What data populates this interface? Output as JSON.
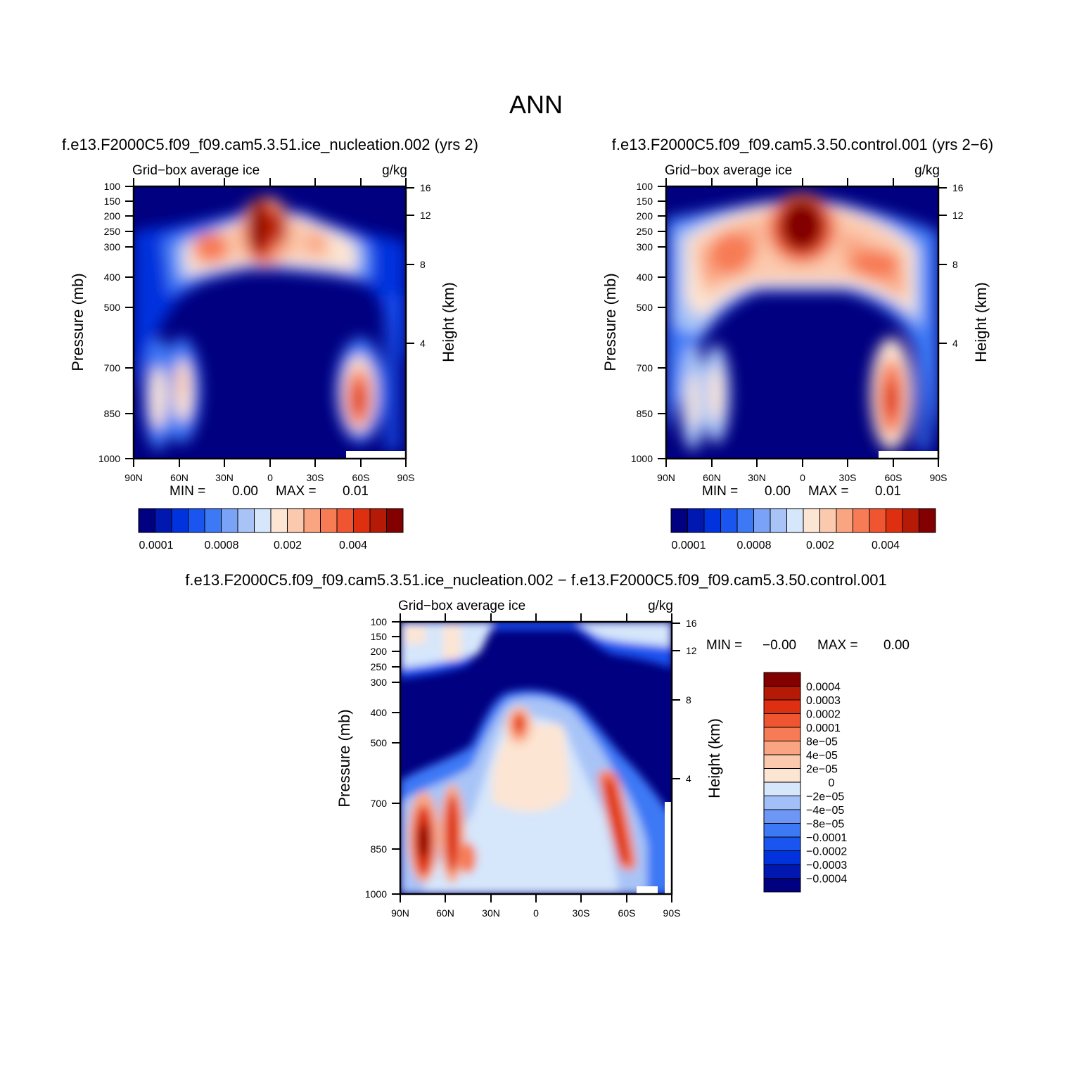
{
  "page_title": "ANN",
  "colors": {
    "seq": [
      "#000080",
      "#0018b0",
      "#0033dd",
      "#1a55f0",
      "#3d78f5",
      "#7aa3f7",
      "#a8c4f7",
      "#d6e6fb",
      "#fde5d3",
      "#fbc9ad",
      "#f9a582",
      "#f77b55",
      "#ef5530",
      "#de3010",
      "#b41a05",
      "#820000"
    ],
    "div": [
      "#000080",
      "#0018b0",
      "#0033dd",
      "#1a55f0",
      "#3d78f5",
      "#6e96f5",
      "#a2c0f7",
      "#d6e6fb",
      "#fde5d3",
      "#fbc9ad",
      "#f9a582",
      "#f77b55",
      "#ef5530",
      "#de3010",
      "#b41a05",
      "#820000"
    ]
  },
  "panels": {
    "test": {
      "case_title": "f.e13.F2000C5.f09_f09.cam5.3.51.ice_nucleation.002 (yrs 2)",
      "var_label": "Grid−box average ice",
      "units": "g/kg",
      "ylabel": "Pressure (mb)",
      "ylabel_right": "Height (km)",
      "min_label": "MIN =",
      "min_value": "0.00",
      "max_label": "MAX =",
      "max_value": "0.01",
      "colorbar_labels": [
        "0.0001",
        "0.0008",
        "0.002",
        "0.004"
      ]
    },
    "control": {
      "case_title": "f.e13.F2000C5.f09_f09.cam5.3.50.control.001 (yrs 2−6)",
      "var_label": "Grid−box average ice",
      "units": "g/kg",
      "ylabel": "Pressure (mb)",
      "ylabel_right": "Height (km)",
      "min_label": "MIN =",
      "min_value": "0.00",
      "max_label": "MAX =",
      "max_value": "0.01",
      "colorbar_labels": [
        "0.0001",
        "0.0008",
        "0.002",
        "0.004"
      ]
    },
    "diff": {
      "case_title": "f.e13.F2000C5.f09_f09.cam5.3.51.ice_nucleation.002 − f.e13.F2000C5.f09_f09.cam5.3.50.control.001",
      "var_label": "Grid−box average ice",
      "units": "g/kg",
      "ylabel": "Pressure (mb)",
      "ylabel_right": "Height (km)",
      "min_label": "MIN =",
      "min_value": "−0.00",
      "max_label": "MAX =",
      "max_value": "0.00",
      "colorbar_labels": [
        "0.0004",
        "0.0003",
        "0.0002",
        "0.0001",
        "8e−05",
        "4e−05",
        "2e−05",
        "0",
        "−2e−05",
        "−4e−05",
        "−8e−05",
        "−0.0001",
        "−0.0002",
        "−0.0003",
        "−0.0004"
      ]
    }
  },
  "chart_data": [
    {
      "type": "heatmap",
      "title": "f.e13.F2000C5.f09_f09.cam5.3.51.ice_nucleation.002 (yrs 2)",
      "xlabel": "",
      "ylabel": "Pressure (mb)",
      "ylabel_right": "Height (km)",
      "x_ticks": [
        "90N",
        "60N",
        "30N",
        "0",
        "30S",
        "60S",
        "90S"
      ],
      "y_ticks": [
        100,
        150,
        200,
        250,
        300,
        400,
        500,
        700,
        850,
        1000
      ],
      "y_log": true,
      "y_right_ticks": [
        16,
        12,
        8,
        4
      ],
      "xlim": [
        90,
        -90
      ],
      "ylim": [
        1000,
        100
      ],
      "colorbar_labels": [
        "0.0001",
        "0.0008",
        "0.002",
        "0.004"
      ],
      "features": [
        {
          "lat": 5,
          "p": 230,
          "level": 15,
          "note": "max near equator"
        },
        {
          "lat": -55,
          "p": 800,
          "level": 12
        },
        {
          "lat": 70,
          "p": 780,
          "level": 9
        },
        {
          "lat": 30,
          "p": 320,
          "level": 11
        }
      ],
      "min": "0.00",
      "max": "0.01"
    },
    {
      "type": "heatmap",
      "title": "f.e13.F2000C5.f09_f09.cam5.3.50.control.001 (yrs 2−6)",
      "xlabel": "",
      "ylabel": "Pressure (mb)",
      "ylabel_right": "Height (km)",
      "x_ticks": [
        "90N",
        "60N",
        "30N",
        "0",
        "30S",
        "60S",
        "90S"
      ],
      "y_ticks": [
        100,
        150,
        200,
        250,
        300,
        400,
        500,
        700,
        850,
        1000
      ],
      "y_log": true,
      "y_right_ticks": [
        16,
        12,
        8,
        4
      ],
      "xlim": [
        90,
        -90
      ],
      "ylim": [
        1000,
        100
      ],
      "colorbar_labels": [
        "0.0001",
        "0.0008",
        "0.002",
        "0.004"
      ],
      "features": [
        {
          "lat": 3,
          "p": 230,
          "level": 15,
          "note": "max near equator"
        },
        {
          "lat": -55,
          "p": 800,
          "level": 11
        },
        {
          "lat": 35,
          "p": 340,
          "level": 12
        },
        {
          "lat": -35,
          "p": 380,
          "level": 11
        }
      ],
      "min": "0.00",
      "max": "0.01"
    },
    {
      "type": "heatmap",
      "title": "f.e13.F2000C5.f09_f09.cam5.3.51.ice_nucleation.002 − f.e13.F2000C5.f09_f09.cam5.3.50.control.001",
      "xlabel": "",
      "ylabel": "Pressure (mb)",
      "ylabel_right": "Height (km)",
      "x_ticks": [
        "90N",
        "60N",
        "30N",
        "0",
        "30S",
        "60S",
        "90S"
      ],
      "y_ticks": [
        100,
        150,
        200,
        250,
        300,
        400,
        500,
        700,
        850,
        1000
      ],
      "y_log": true,
      "y_right_ticks": [
        16,
        12,
        8,
        4
      ],
      "xlim": [
        90,
        -90
      ],
      "ylim": [
        1000,
        100
      ],
      "colorbar_labels": [
        "0.0004",
        "0.0003",
        "0.0002",
        "0.0001",
        "8e−05",
        "4e−05",
        "2e−05",
        "0",
        "−2e−05",
        "−4e−05",
        "−8e−05",
        "−0.0001",
        "−0.0002",
        "−0.0003",
        "−0.0004"
      ],
      "features": [
        {
          "lat": 72,
          "p": 800,
          "level": 15
        },
        {
          "lat": 58,
          "p": 780,
          "level": 13
        },
        {
          "lat": -47,
          "p": 720,
          "level": 13
        },
        {
          "lat": 12,
          "p": 420,
          "level": 12
        },
        {
          "lat": 0,
          "p": 220,
          "level": 0,
          "note": "strong negative upper troposphere"
        }
      ],
      "min": "−0.00",
      "max": "0.00"
    }
  ]
}
